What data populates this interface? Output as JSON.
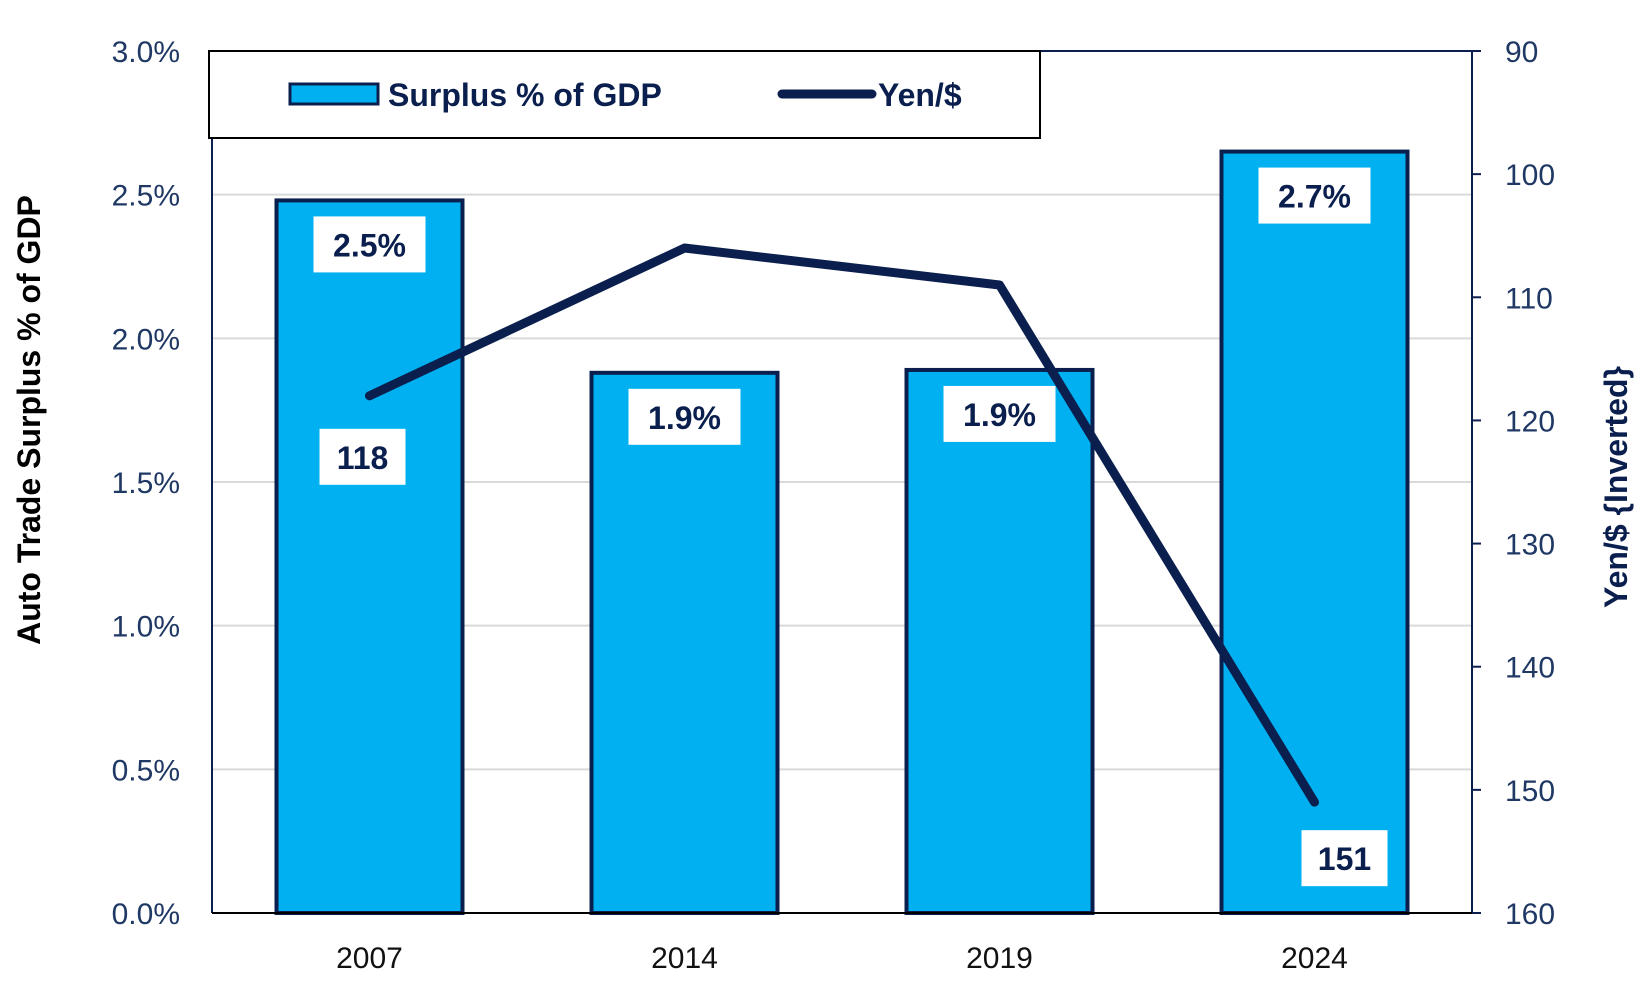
{
  "chart_data": {
    "type": "bar",
    "categories": [
      "2007",
      "2014",
      "2019",
      "2024"
    ],
    "series": [
      {
        "name": "Surplus % of GDP",
        "type": "bar",
        "axis": "left",
        "values": [
          2.48,
          1.88,
          1.89,
          2.65
        ],
        "labels": [
          "2.5%",
          "1.9%",
          "1.9%",
          "2.7%"
        ]
      },
      {
        "name": "Yen/$",
        "type": "line",
        "axis": "right",
        "values": [
          118,
          106,
          109,
          151
        ],
        "labels": [
          "",
          "",
          "",
          ""
        ],
        "shown_labels": [
          "118",
          "151"
        ]
      }
    ],
    "y_left": {
      "title": "Auto Trade Surplus % of GDP",
      "ylim": [
        0,
        3.0
      ],
      "ticks": [
        "0.0%",
        "0.5%",
        "1.0%",
        "1.5%",
        "2.0%",
        "2.5%",
        "3.0%"
      ]
    },
    "y_right": {
      "title": "Yen/$ {Inverted}",
      "ylim": [
        90,
        160
      ],
      "inverted": true,
      "ticks": [
        "90",
        "100",
        "110",
        "120",
        "130",
        "140",
        "150",
        "160"
      ]
    },
    "grid": true,
    "legend_position": "top-left",
    "colors": {
      "bar_fill": "#00b0f0",
      "bar_stroke": "#0a1f4e",
      "line": "#0a1f4e",
      "grid": "#d9d9d9",
      "tick_text": "#1f3864",
      "left_title": "#000000",
      "right_title": "#0a1f4e"
    }
  }
}
